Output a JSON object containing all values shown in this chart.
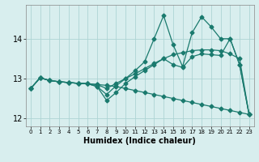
{
  "xlabel": "Humidex (Indice chaleur)",
  "bg_color": "#d8eeee",
  "grid_color": "#add4d4",
  "line_color": "#1a7a6e",
  "xlim": [
    -0.5,
    23.5
  ],
  "ylim": [
    11.8,
    14.85
  ],
  "yticks": [
    12,
    13,
    14
  ],
  "xticks": [
    0,
    1,
    2,
    3,
    4,
    5,
    6,
    7,
    8,
    9,
    10,
    11,
    12,
    13,
    14,
    15,
    16,
    17,
    18,
    19,
    20,
    21,
    22,
    23
  ],
  "series": [
    {
      "x": [
        0,
        1,
        2,
        3,
        4,
        5,
        6,
        7,
        8,
        9,
        10,
        11,
        12,
        13,
        14,
        15,
        16,
        17,
        18,
        19,
        20,
        21,
        22,
        23
      ],
      "y": [
        12.75,
        13.02,
        12.95,
        12.92,
        12.9,
        12.88,
        12.87,
        12.85,
        12.83,
        12.8,
        12.75,
        12.7,
        12.65,
        12.6,
        12.55,
        12.5,
        12.45,
        12.4,
        12.35,
        12.3,
        12.25,
        12.2,
        12.15,
        12.1
      ]
    },
    {
      "x": [
        0,
        1,
        2,
        3,
        4,
        5,
        6,
        7,
        8,
        9,
        10,
        11,
        12,
        13,
        14,
        15,
        16,
        17,
        18,
        19,
        20,
        21,
        22,
        23
      ],
      "y": [
        12.75,
        13.02,
        12.95,
        12.92,
        12.9,
        12.88,
        12.87,
        12.8,
        12.45,
        12.65,
        12.88,
        13.05,
        13.2,
        13.35,
        13.5,
        13.35,
        13.28,
        13.55,
        13.62,
        13.6,
        13.58,
        14.0,
        13.35,
        12.1
      ]
    },
    {
      "x": [
        0,
        1,
        2,
        3,
        4,
        5,
        6,
        7,
        8,
        9,
        10,
        11,
        12,
        13,
        14,
        15,
        16,
        17,
        18,
        19,
        20,
        21,
        22,
        23
      ],
      "y": [
        12.75,
        13.02,
        12.95,
        12.92,
        12.9,
        12.88,
        12.87,
        12.8,
        12.6,
        12.82,
        13.0,
        13.2,
        13.42,
        14.0,
        14.58,
        13.85,
        13.3,
        14.15,
        14.55,
        14.3,
        14.0,
        14.0,
        13.35,
        12.1
      ]
    },
    {
      "x": [
        0,
        1,
        2,
        3,
        4,
        5,
        6,
        7,
        8,
        9,
        10,
        11,
        12,
        13,
        14,
        15,
        16,
        17,
        18,
        19,
        20,
        21,
        22,
        23
      ],
      "y": [
        12.75,
        13.02,
        12.95,
        12.92,
        12.9,
        12.88,
        12.87,
        12.85,
        12.75,
        12.88,
        13.0,
        13.12,
        13.25,
        13.38,
        13.5,
        13.6,
        13.65,
        13.7,
        13.72,
        13.72,
        13.7,
        13.62,
        13.5,
        12.1
      ]
    }
  ],
  "marker": "D",
  "marker_size": 2.5,
  "line_width": 0.9
}
